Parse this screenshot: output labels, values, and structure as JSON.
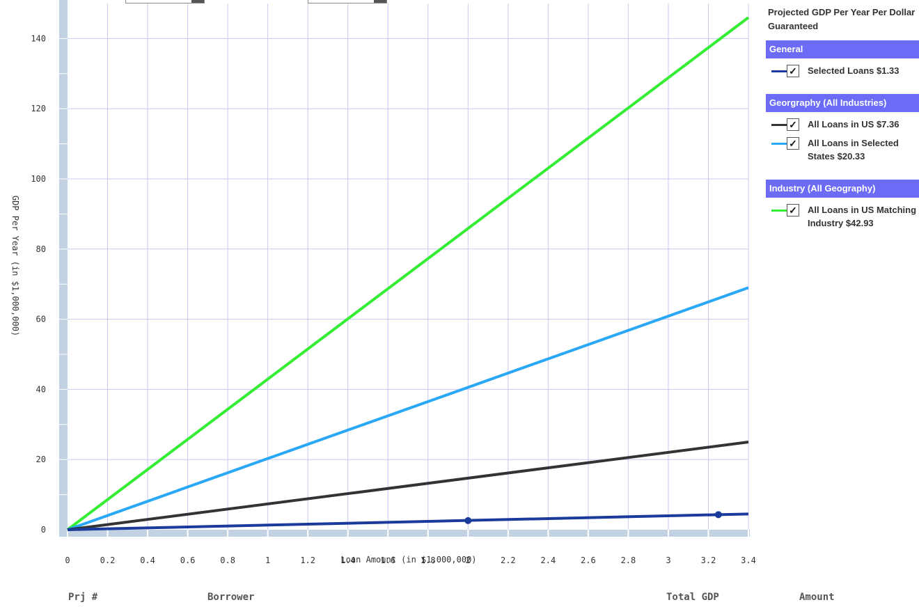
{
  "chart_data": {
    "type": "line",
    "xlabel": "Loan Amount (in $1,000,000)",
    "ylabel": "GDP Per Year (in $1,000,000)",
    "xlim": [
      0,
      3.4
    ],
    "ylim": [
      0,
      150
    ],
    "x_ticks": [
      "0",
      "0.2",
      "0.4",
      "0.6",
      "0.8",
      "1",
      "1.2",
      "1.4",
      "1.6",
      "1.8",
      "2",
      "2.2",
      "2.4",
      "2.6",
      "2.8",
      "3",
      "3.2",
      "3.4"
    ],
    "y_ticks": [
      "0",
      "20",
      "40",
      "60",
      "80",
      "100",
      "120",
      "140"
    ],
    "grid": true,
    "series": [
      {
        "name": "All Loans in US Matching Industry",
        "color": "#33ee33",
        "x": [
          0,
          3.4
        ],
        "y": [
          0,
          146
        ]
      },
      {
        "name": "All Loans in Selected States",
        "color": "#2aa8f5",
        "x": [
          0,
          3.4
        ],
        "y": [
          0,
          69
        ]
      },
      {
        "name": "All Loans in US",
        "color": "#333333",
        "x": [
          0,
          3.4
        ],
        "y": [
          0,
          25
        ]
      },
      {
        "name": "Selected Loans",
        "color": "#1a3a9c",
        "x": [
          0,
          3.4
        ],
        "y": [
          0,
          4.5
        ],
        "points": [
          [
            2,
            2.6
          ],
          [
            3.25,
            4.3
          ]
        ]
      }
    ]
  },
  "legend": {
    "title": "Projected GDP Per Year Per Dollar Guaranteed",
    "groups": [
      {
        "header": "General",
        "items": [
          {
            "label": "Selected Loans $1.33",
            "color": "#1a3a9c"
          }
        ]
      },
      {
        "header": "Georgraphy (All Industries)",
        "items": [
          {
            "label": "All Loans in US $7.36",
            "color": "#333333"
          },
          {
            "label": "All Loans in Selected States $20.33",
            "color": "#2aa8f5"
          }
        ]
      },
      {
        "header": "Industry (All Geography)",
        "items": [
          {
            "label": "All Loans in US Matching Industry $42.93",
            "color": "#33ee33"
          }
        ]
      }
    ],
    "check_glyph": "✓"
  },
  "table_header": {
    "col1": "Prj #",
    "col2": "Borrower",
    "col3": "Total GDP",
    "col4": "Amount"
  }
}
